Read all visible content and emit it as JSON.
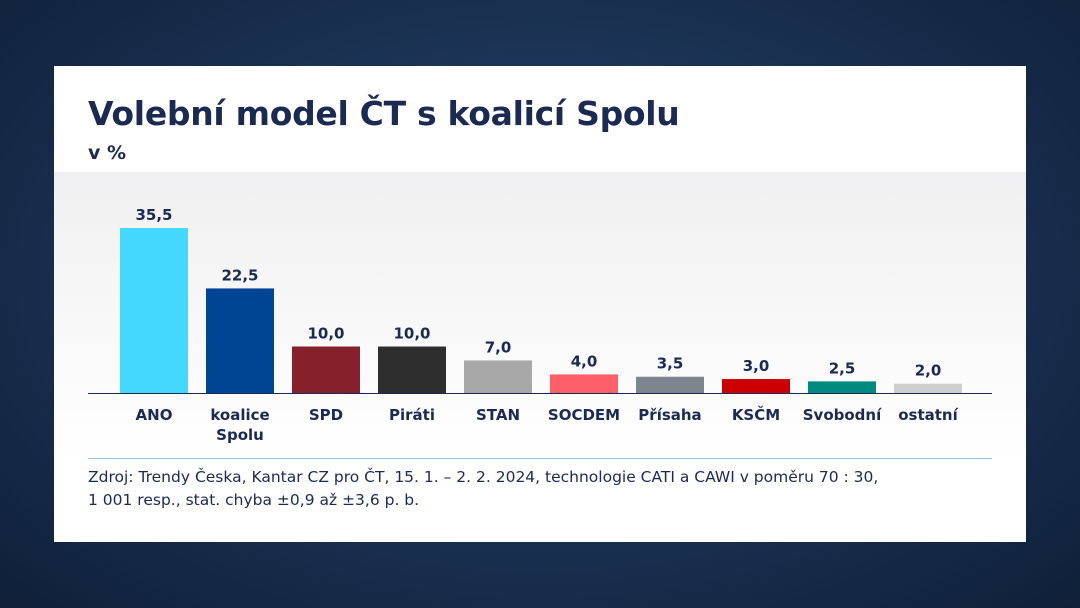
{
  "card": {
    "title": "Volební model ČT s koalicí Spolu",
    "subtitle": "v %",
    "source_line1": "Zdroj: Trendy Česka, Kantar CZ pro ČT, 15. 1. – 2. 2. 2024, technologie CATI a CAWI v poměru 70 : 30,",
    "source_line2": "1 001 resp., stat. chyba ±0,9 až ±3,6 p. b."
  },
  "chart_data": {
    "type": "bar",
    "title": "Volební model ČT s koalicí Spolu",
    "subtitle": "v %",
    "categories": [
      [
        "ANO"
      ],
      [
        "koalice",
        "Spolu"
      ],
      [
        "SPD"
      ],
      [
        "Piráti"
      ],
      [
        "STAN"
      ],
      [
        "SOCDEM"
      ],
      [
        "Přísaha"
      ],
      [
        "KSČM"
      ],
      [
        "Svobodní"
      ],
      [
        "ostatní"
      ]
    ],
    "values": [
      35.5,
      22.5,
      10.0,
      10.0,
      7.0,
      4.0,
      3.5,
      3.0,
      2.5,
      2.0
    ],
    "value_labels": [
      "35,5",
      "22,5",
      "10,0",
      "10,0",
      "7,0",
      "4,0",
      "3,5",
      "3,0",
      "2,5",
      "2,0"
    ],
    "colors": [
      "#45d8ff",
      "#004494",
      "#86202a",
      "#2d2d2d",
      "#a8a8a8",
      "#ff6068",
      "#7d868e",
      "#cc0000",
      "#008a80",
      "#cfcfcf"
    ],
    "ylim": [
      0,
      35.5
    ],
    "grid": false,
    "legend": "none"
  }
}
